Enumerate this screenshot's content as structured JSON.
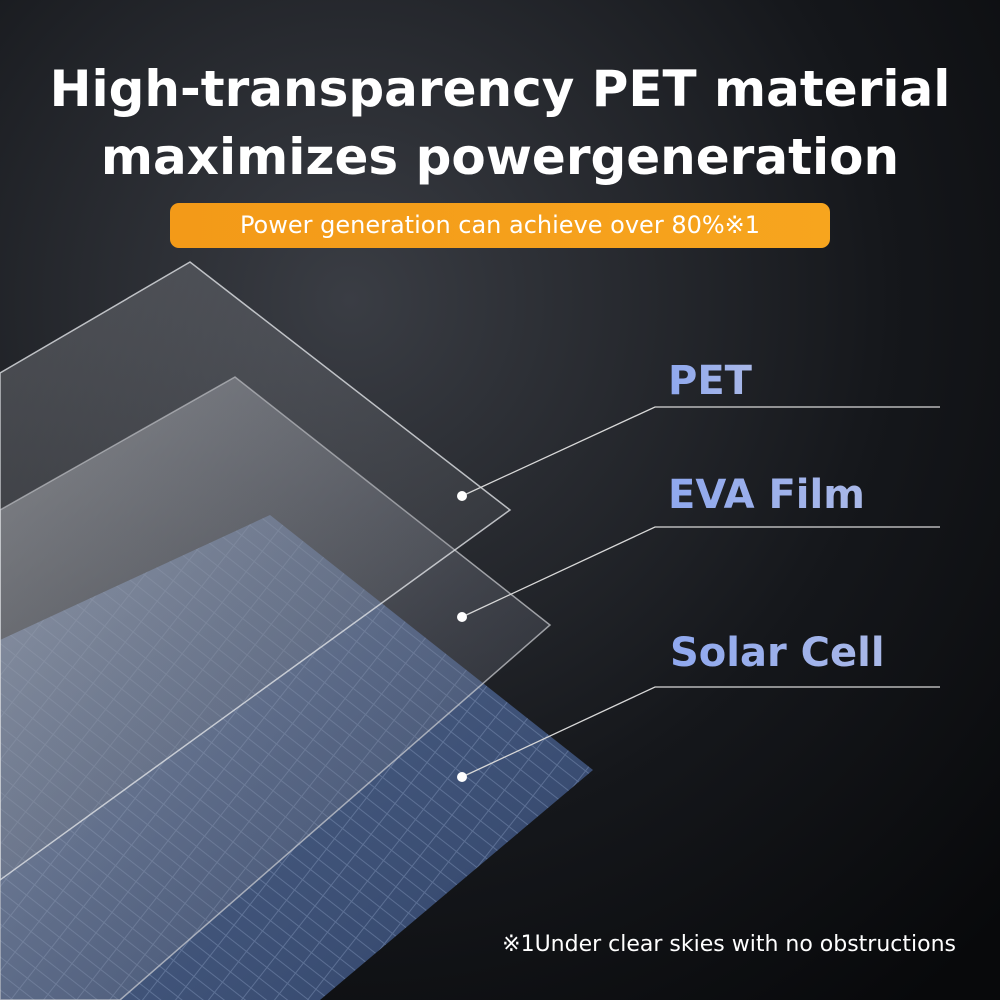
{
  "header": {
    "title": [
      "High-transparency PET material",
      "maximizes powergeneration"
    ],
    "badge": "Power generation can achieve over 80%※1"
  },
  "layers": [
    {
      "label": "PET"
    },
    {
      "label": "EVA Film"
    },
    {
      "label": "Solar Cell"
    }
  ],
  "footnote": "※1Under clear skies with no obstructions"
}
